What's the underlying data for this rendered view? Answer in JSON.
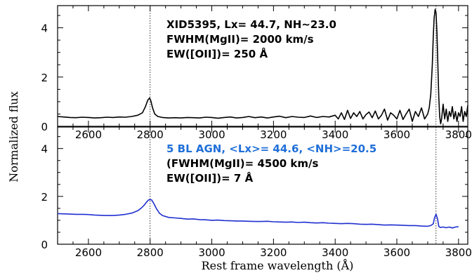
{
  "chart_data": {
    "type": "line",
    "xlabel": "Rest frame wavelength (Å)",
    "ylabel": "Normalized flux",
    "shared_x_axis": true,
    "x_ticks": [
      "2600",
      "2800",
      "3000",
      "3200",
      "3400",
      "3600",
      "3800"
    ],
    "y_ticks": [
      "0",
      "2",
      "4"
    ],
    "xlim": [
      2500,
      3830
    ],
    "reference_lines": [
      {
        "x": 2800,
        "style": "dotted"
      },
      {
        "x": 3727,
        "style": "dotted"
      }
    ],
    "panels": [
      {
        "id": "top",
        "ylim": [
          0,
          4.9
        ],
        "color": "#000000",
        "annotation_color": "#000000",
        "annotations": [
          "XID5395, Lx= 44.7, NH~23.0",
          "FWHM(MgII)= 2000 km/s",
          "EW([OII])= 250 Å"
        ],
        "series": {
          "x": [
            2500,
            2520,
            2540,
            2560,
            2580,
            2600,
            2620,
            2640,
            2660,
            2680,
            2700,
            2720,
            2740,
            2760,
            2775,
            2785,
            2792,
            2798,
            2802,
            2808,
            2815,
            2825,
            2840,
            2860,
            2880,
            2900,
            2920,
            2940,
            2960,
            2980,
            3000,
            3020,
            3040,
            3060,
            3080,
            3100,
            3120,
            3140,
            3160,
            3180,
            3200,
            3220,
            3240,
            3260,
            3280,
            3300,
            3320,
            3340,
            3360,
            3380,
            3400,
            3410,
            3420,
            3430,
            3440,
            3450,
            3460,
            3470,
            3480,
            3490,
            3500,
            3510,
            3520,
            3530,
            3540,
            3550,
            3560,
            3570,
            3580,
            3590,
            3600,
            3610,
            3620,
            3630,
            3640,
            3650,
            3660,
            3670,
            3680,
            3690,
            3700,
            3705,
            3710,
            3715,
            3718,
            3721,
            3724,
            3727,
            3730,
            3733,
            3736,
            3739,
            3742,
            3745,
            3750,
            3755,
            3760,
            3765,
            3770,
            3775,
            3780,
            3785,
            3790,
            3795,
            3800,
            3805,
            3810,
            3815,
            3820,
            3825,
            3830
          ],
          "y": [
            0.4,
            0.38,
            0.36,
            0.35,
            0.37,
            0.36,
            0.34,
            0.35,
            0.37,
            0.36,
            0.38,
            0.37,
            0.4,
            0.45,
            0.55,
            0.8,
            1.05,
            1.15,
            1.05,
            0.75,
            0.5,
            0.4,
            0.36,
            0.34,
            0.35,
            0.34,
            0.36,
            0.35,
            0.34,
            0.37,
            0.36,
            0.33,
            0.36,
            0.38,
            0.34,
            0.36,
            0.4,
            0.35,
            0.38,
            0.34,
            0.38,
            0.41,
            0.35,
            0.4,
            0.37,
            0.36,
            0.42,
            0.36,
            0.4,
            0.38,
            0.45,
            0.3,
            0.55,
            0.28,
            0.65,
            0.32,
            0.55,
            0.4,
            0.6,
            0.3,
            0.48,
            0.58,
            0.35,
            0.62,
            0.3,
            0.45,
            0.7,
            0.25,
            0.55,
            0.45,
            0.3,
            0.65,
            0.28,
            0.5,
            0.7,
            0.2,
            0.6,
            0.4,
            0.75,
            0.3,
            0.5,
            0.75,
            1.3,
            2.5,
            3.6,
            4.4,
            4.75,
            4.6,
            3.8,
            2.5,
            1.2,
            0.4,
            0.1,
            0.3,
            0.9,
            0.3,
            0.7,
            0.2,
            0.6,
            0.4,
            0.8,
            0.3,
            0.6,
            0.2,
            0.55,
            0.4,
            0.8,
            0.2,
            0.6,
            0.4,
            0.85
          ]
        }
      },
      {
        "id": "bottom",
        "ylim": [
          0,
          4.9
        ],
        "color": "#1f2fd0",
        "annotation_color": "#1f6fd8",
        "annotations": [
          "5 BL AGN, <Lx>= 44.6, <NH>=20.5",
          "(FWHM(MgII)= 4500 km/s",
          "EW([OII])= 7 Å"
        ],
        "series": {
          "x": [
            2500,
            2520,
            2540,
            2560,
            2580,
            2600,
            2620,
            2640,
            2660,
            2680,
            2700,
            2720,
            2740,
            2760,
            2770,
            2780,
            2790,
            2795,
            2800,
            2805,
            2810,
            2820,
            2830,
            2840,
            2860,
            2880,
            2900,
            2920,
            2940,
            2960,
            2980,
            3000,
            3020,
            3040,
            3060,
            3080,
            3100,
            3120,
            3140,
            3160,
            3180,
            3200,
            3220,
            3240,
            3260,
            3280,
            3300,
            3320,
            3340,
            3360,
            3380,
            3400,
            3420,
            3440,
            3460,
            3480,
            3500,
            3520,
            3540,
            3560,
            3580,
            3600,
            3620,
            3640,
            3660,
            3680,
            3700,
            3710,
            3718,
            3722,
            3727,
            3732,
            3736,
            3740,
            3750,
            3760,
            3770,
            3780,
            3790,
            3800
          ],
          "y": [
            1.28,
            1.27,
            1.26,
            1.25,
            1.25,
            1.24,
            1.22,
            1.21,
            1.2,
            1.2,
            1.22,
            1.25,
            1.3,
            1.4,
            1.5,
            1.62,
            1.78,
            1.85,
            1.87,
            1.85,
            1.75,
            1.5,
            1.3,
            1.2,
            1.12,
            1.1,
            1.08,
            1.05,
            1.06,
            1.03,
            1.02,
            1.0,
            1.01,
            0.99,
            0.98,
            0.97,
            0.97,
            0.96,
            0.95,
            0.95,
            0.96,
            0.94,
            0.93,
            0.92,
            0.93,
            0.91,
            0.92,
            0.9,
            0.89,
            0.9,
            0.88,
            0.87,
            0.86,
            0.87,
            0.86,
            0.84,
            0.83,
            0.84,
            0.82,
            0.8,
            0.81,
            0.8,
            0.79,
            0.78,
            0.78,
            0.76,
            0.75,
            0.78,
            0.85,
            1.1,
            1.25,
            1.05,
            0.75,
            0.7,
            0.72,
            0.69,
            0.72,
            0.68,
            0.72,
            0.73
          ]
        }
      }
    ]
  }
}
